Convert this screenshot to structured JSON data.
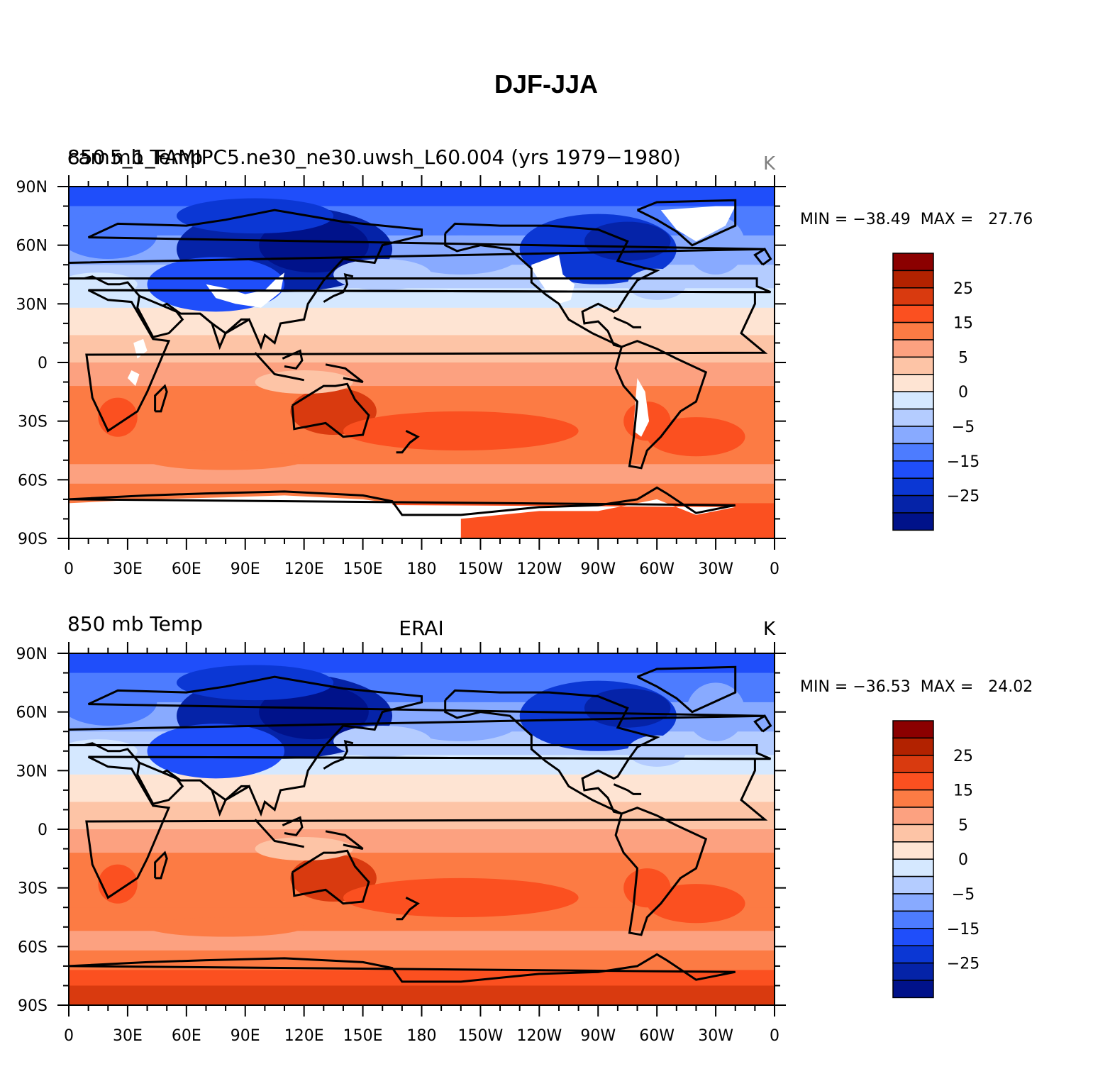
{
  "figure_title": "DJF-JJA",
  "x_tick_labels": [
    "0",
    "30E",
    "60E",
    "90E",
    "120E",
    "150E",
    "180",
    "150W",
    "120W",
    "90W",
    "60W",
    "30W",
    "0"
  ],
  "y_tick_labels": [
    "90N",
    "60N",
    "30N",
    "0",
    "30S",
    "60S",
    "90S"
  ],
  "colorbar": {
    "labels": [
      "25",
      "15",
      "5",
      "0",
      "−5",
      "−15",
      "−25"
    ],
    "colors": [
      "#8b0000",
      "#b22200",
      "#d93a0f",
      "#fb5020",
      "#fc7b44",
      "#fca180",
      "#fdc4a6",
      "#fee4d3",
      "#d5e8ff",
      "#b4ccff",
      "#88aaff",
      "#4d7cff",
      "#1f4efa",
      "#0b37d4",
      "#0523a8",
      "#00128a"
    ]
  },
  "panels": [
    {
      "left_title": "850 mb Temp",
      "center_title": "",
      "overlaid_title": "cam5_1_FAMIPC5.ne30_ne30.uwsh_L60.004 (yrs 1979−1980)",
      "units": "K",
      "stats": "MIN = −38.49  MAX =   27.76",
      "missing_topography": true
    },
    {
      "left_title": "850 mb Temp",
      "center_title": "ERAI",
      "overlaid_title": "",
      "units": "K",
      "stats": "MIN = −36.53  MAX =   24.02",
      "missing_topography": false
    }
  ]
}
